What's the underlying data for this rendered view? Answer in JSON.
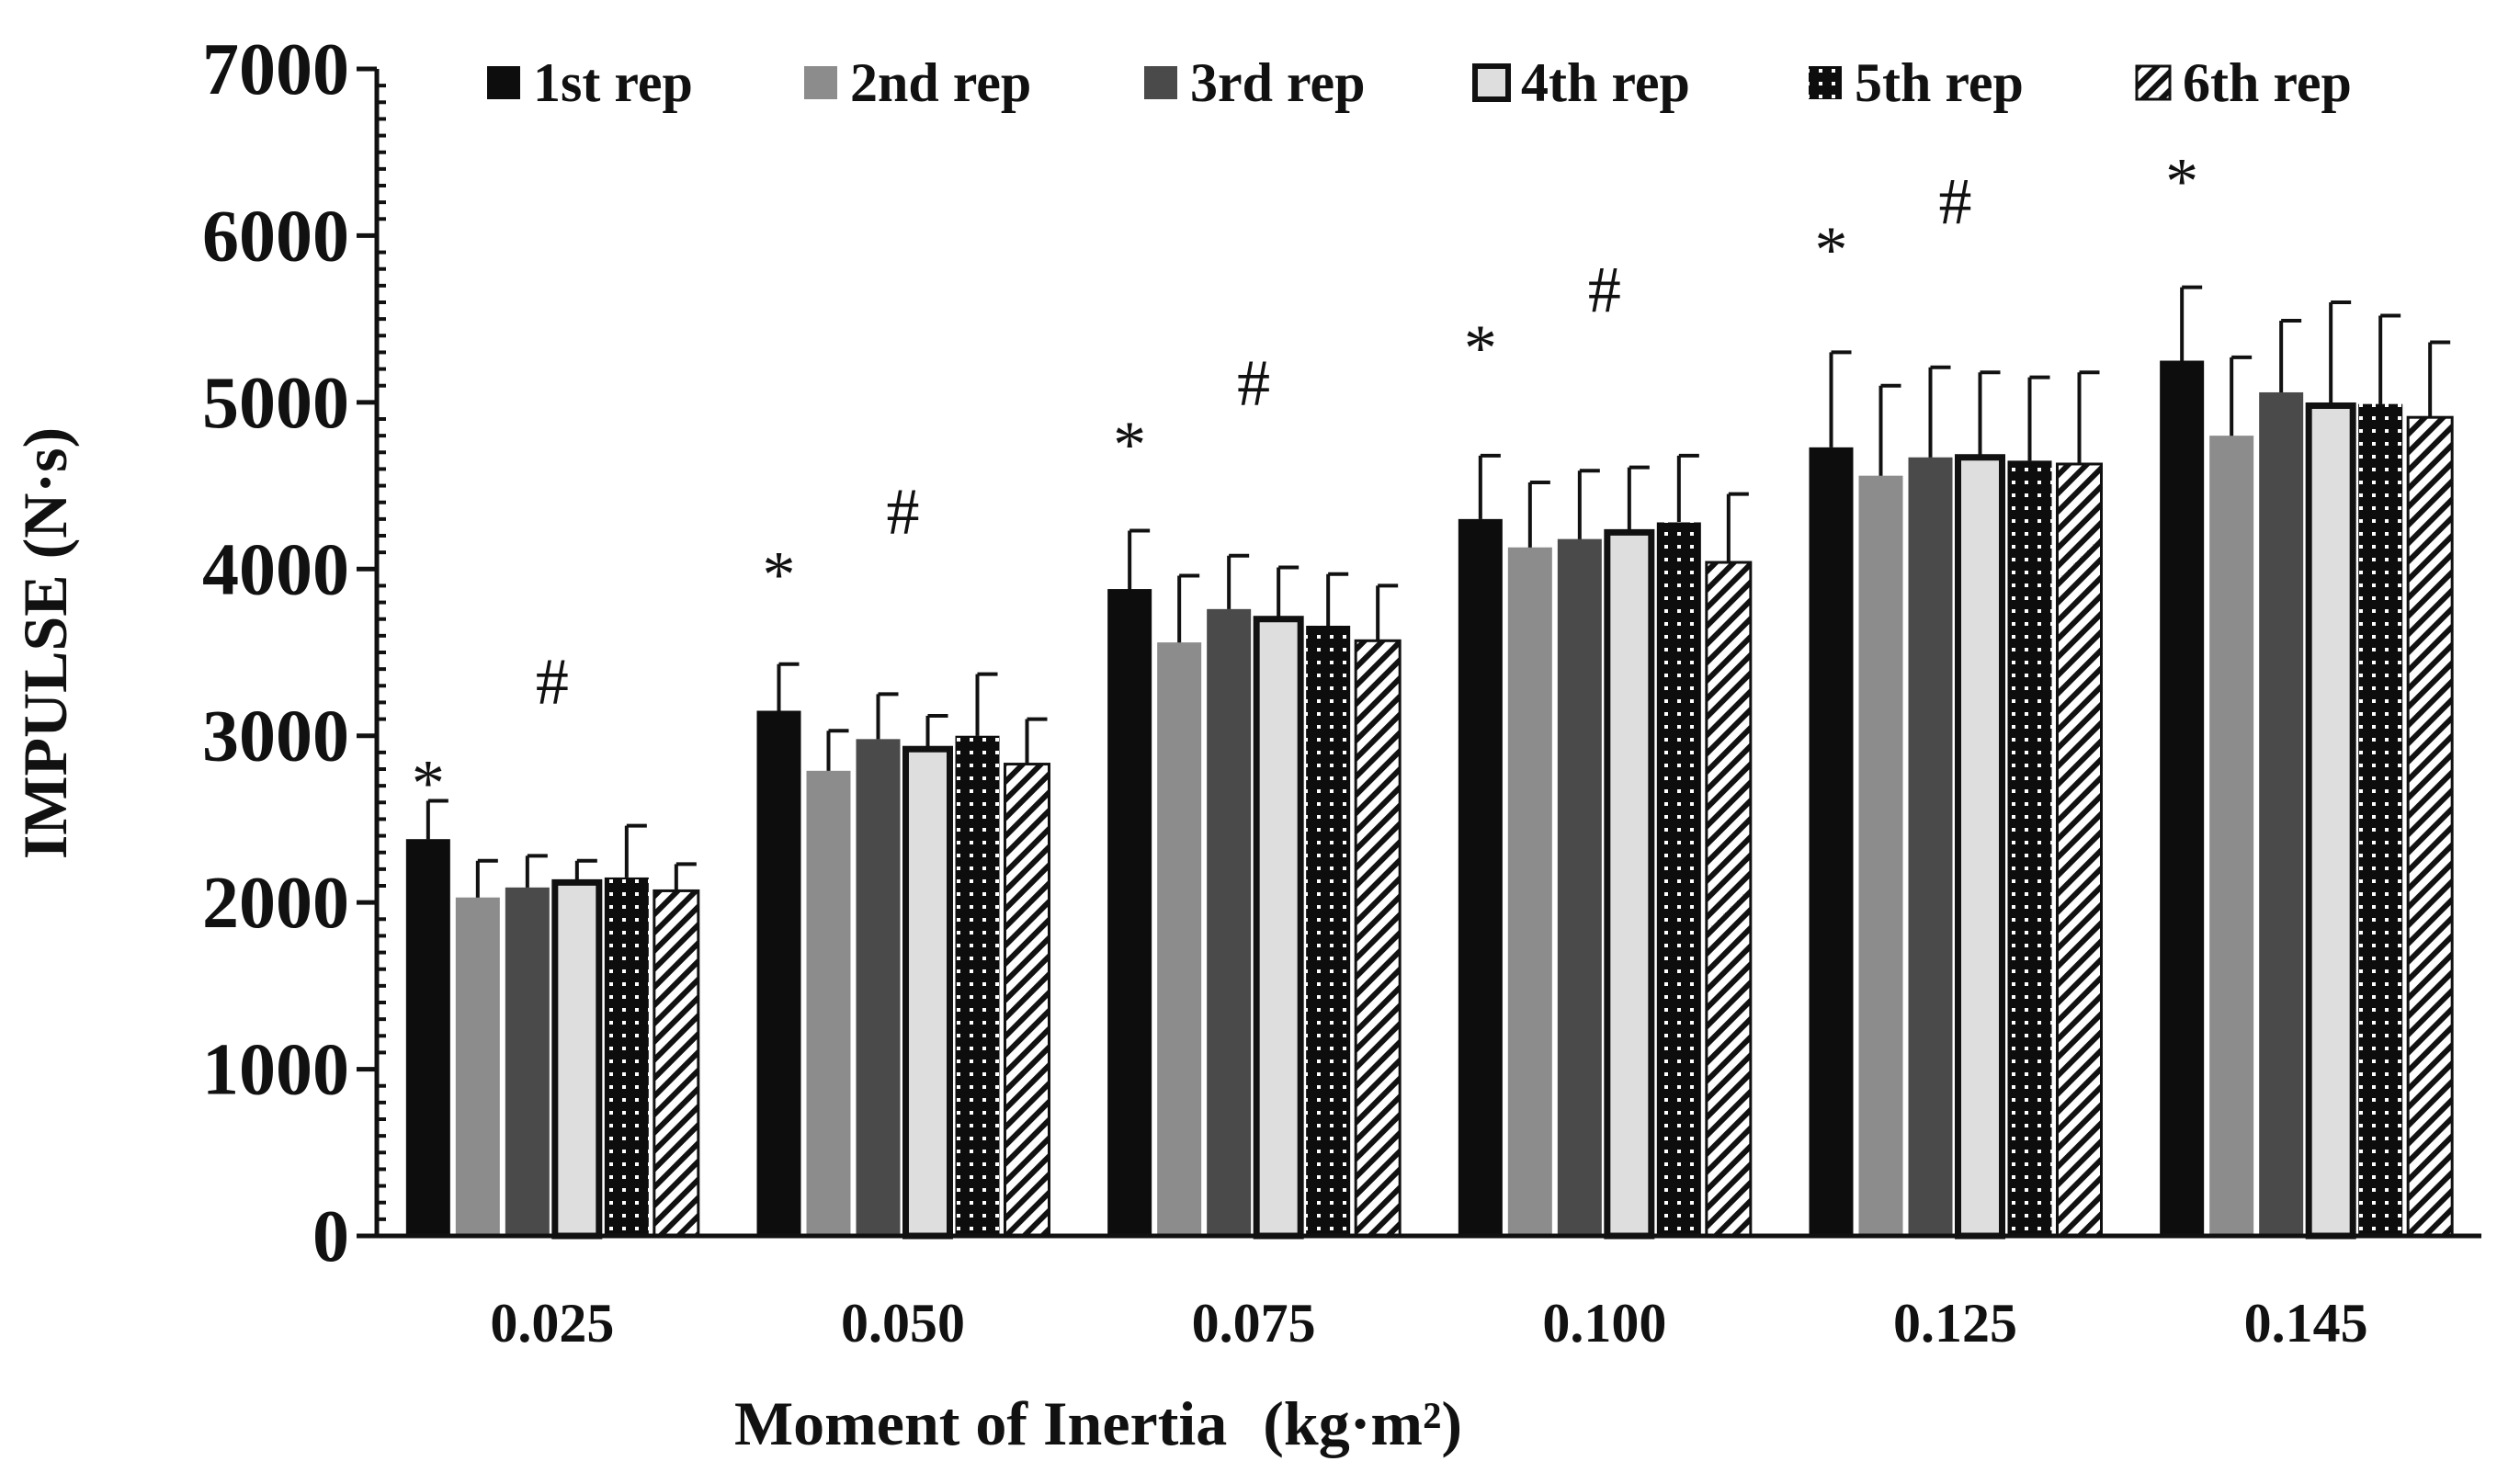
{
  "chart_data": {
    "type": "bar",
    "title": "",
    "xlabel": "Moment of Inertia",
    "xlabel_unit": "(kg·m²)",
    "ylabel": "IMPULSE (N·s)",
    "ylim": [
      0,
      7000
    ],
    "yticks": [
      0,
      1000,
      2000,
      3000,
      4000,
      5000,
      6000,
      7000
    ],
    "categories": [
      "0.025",
      "0.050",
      "0.075",
      "0.100",
      "0.125",
      "0.145"
    ],
    "legend_position": "top",
    "series": [
      {
        "name": "1st rep",
        "color": "#0d0d0d",
        "pattern": "solid",
        "values": [
          2380,
          3150,
          3880,
          4300,
          4730,
          5250
        ],
        "errors": [
          230,
          280,
          350,
          380,
          570,
          440
        ]
      },
      {
        "name": "2nd rep",
        "color": "#8c8c8c",
        "pattern": "solid",
        "values": [
          2030,
          2790,
          3560,
          4130,
          4560,
          4800
        ],
        "errors": [
          220,
          240,
          400,
          390,
          540,
          470
        ]
      },
      {
        "name": "3rd rep",
        "color": "#4a4a4a",
        "pattern": "solid",
        "values": [
          2090,
          2980,
          3760,
          4180,
          4670,
          5060
        ],
        "errors": [
          190,
          270,
          320,
          410,
          540,
          430
        ]
      },
      {
        "name": "4th rep",
        "color": "#dedede",
        "pattern": "outlined",
        "values": [
          2120,
          2920,
          3700,
          4220,
          4670,
          4980
        ],
        "errors": [
          130,
          200,
          310,
          390,
          510,
          620
        ]
      },
      {
        "name": "5th rep",
        "color": "#0d0d0d",
        "pattern": "dotted",
        "values": [
          2150,
          3000,
          3660,
          4280,
          4650,
          4990
        ],
        "errors": [
          310,
          370,
          310,
          400,
          500,
          530
        ]
      },
      {
        "name": "6th rep",
        "color": "#ffffff",
        "pattern": "hatched",
        "values": [
          2070,
          2830,
          3570,
          4040,
          4630,
          4910
        ],
        "errors": [
          160,
          270,
          330,
          410,
          550,
          450
        ]
      }
    ],
    "annotations": [
      {
        "category": "0.025",
        "symbol": "*",
        "y": 2720
      },
      {
        "category": "0.025",
        "symbol": "#",
        "y": 3330
      },
      {
        "category": "0.050",
        "symbol": "*",
        "y": 3970
      },
      {
        "category": "0.050",
        "symbol": "#",
        "y": 4350
      },
      {
        "category": "0.075",
        "symbol": "*",
        "y": 4750
      },
      {
        "category": "0.075",
        "symbol": "#",
        "y": 5120
      },
      {
        "category": "0.100",
        "symbol": "*",
        "y": 5330
      },
      {
        "category": "0.100",
        "symbol": "#",
        "y": 5680
      },
      {
        "category": "0.125",
        "symbol": "*",
        "y": 5920
      },
      {
        "category": "0.125",
        "symbol": "#",
        "y": 6210
      },
      {
        "category": "0.145",
        "symbol": "*",
        "y": 6330
      }
    ]
  }
}
